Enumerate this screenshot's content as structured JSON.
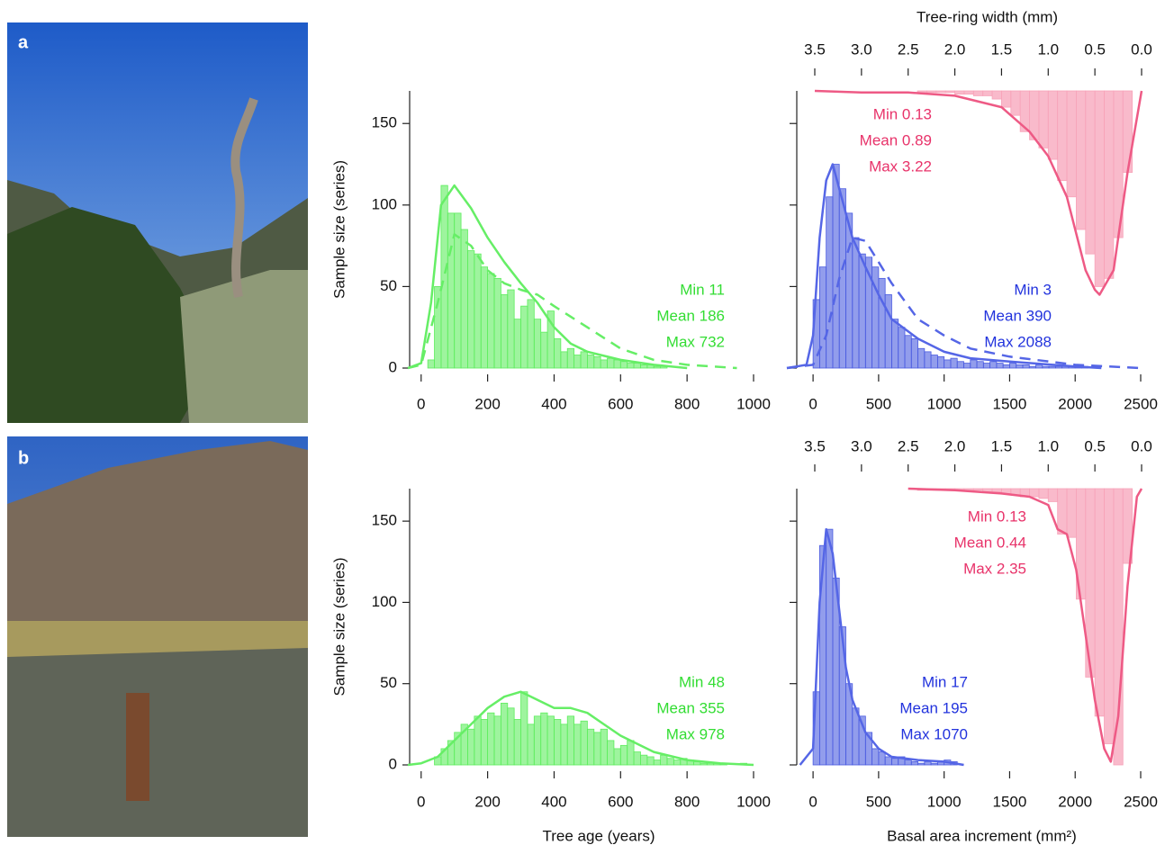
{
  "panels": [
    {
      "label": "a"
    },
    {
      "label": "b"
    }
  ],
  "chart_data": [
    {
      "type": "histogram",
      "y_label": "Sample size (series)",
      "xlim": [
        -40,
        1000
      ],
      "xticks": [
        0,
        200,
        400,
        600,
        800,
        1000
      ],
      "ylim": [
        0,
        170
      ],
      "yticks": [
        0,
        50,
        100,
        150
      ],
      "ytick_labels": true,
      "histograms": [
        {
          "color": "#5ded5d",
          "bins": [
            20,
            40,
            60,
            80,
            100,
            120,
            140,
            160,
            180,
            200,
            220,
            240,
            260,
            280,
            300,
            320,
            340,
            360,
            380,
            400,
            420,
            440,
            460,
            480,
            500,
            520,
            540,
            560,
            580,
            600,
            620,
            640,
            660,
            680,
            700,
            720,
            740
          ],
          "values": [
            5,
            50,
            112,
            95,
            95,
            85,
            72,
            70,
            62,
            58,
            55,
            45,
            48,
            30,
            38,
            42,
            30,
            22,
            35,
            18,
            10,
            12,
            8,
            10,
            8,
            7,
            5,
            6,
            5,
            4,
            3,
            3,
            2,
            2,
            1,
            1
          ]
        }
      ],
      "curves": [
        {
          "color": "#66ee66",
          "dash": false,
          "x": [
            -40,
            0,
            30,
            60,
            100,
            150,
            200,
            250,
            300,
            350,
            400,
            450,
            500,
            600,
            700,
            800
          ],
          "values": [
            0,
            3,
            40,
            100,
            112,
            98,
            80,
            65,
            52,
            40,
            25,
            15,
            10,
            5,
            2,
            0
          ]
        },
        {
          "color": "#66ee66",
          "dash": true,
          "x": [
            -40,
            0,
            50,
            100,
            150,
            200,
            250,
            300,
            350,
            400,
            500,
            600,
            700,
            800,
            950
          ],
          "values": [
            0,
            2,
            40,
            82,
            75,
            60,
            52,
            48,
            45,
            38,
            25,
            12,
            5,
            2,
            0
          ]
        }
      ],
      "annotations": [
        {
          "color": "#33dd33",
          "lines": [
            "Min 11",
            "Mean 186",
            "Max 732"
          ]
        }
      ]
    },
    {
      "type": "histogram",
      "x2_label": "Tree-ring width (mm)",
      "xlim": [
        -200,
        2500
      ],
      "xticks": [
        0,
        500,
        1000,
        1500,
        2000,
        2500
      ],
      "ylim": [
        0,
        170
      ],
      "yticks": [
        0,
        50,
        100,
        150
      ],
      "ytick_labels": false,
      "x2lim": [
        3.5,
        0
      ],
      "x2ticks": [
        3.5,
        {
          "value": 3,
          "label": "3.0"
        },
        2.5,
        {
          "value": 2,
          "label": "2.0"
        },
        1.5,
        {
          "value": 1,
          "label": "1.0"
        },
        0.5,
        {
          "value": 0,
          "label": "0.0"
        }
      ],
      "histograms": [
        {
          "color": "#4a5be0",
          "bins": [
            0,
            50,
            100,
            150,
            200,
            250,
            300,
            350,
            400,
            450,
            500,
            550,
            600,
            650,
            700,
            750,
            800,
            850,
            900,
            950,
            1000,
            1050,
            1100,
            1150,
            1200,
            1250,
            1300,
            1350,
            1400,
            1450,
            1500,
            1550,
            1600,
            1650,
            1700,
            1750,
            1800,
            1850,
            1900,
            1950,
            2000,
            2050,
            2100
          ],
          "values": [
            42,
            62,
            105,
            125,
            110,
            95,
            80,
            70,
            68,
            62,
            55,
            45,
            30,
            25,
            20,
            18,
            12,
            10,
            8,
            7,
            5,
            6,
            4,
            3,
            5,
            4,
            3,
            4,
            3,
            2,
            3,
            2,
            2,
            1,
            2,
            1,
            1,
            1,
            1,
            1,
            1,
            1
          ]
        },
        {
          "color": "#f7a3b9",
          "axis": "x2",
          "hang": true,
          "bins": [
            2.4,
            2.3,
            2.2,
            2.1,
            2.0,
            1.9,
            1.8,
            1.7,
            1.6,
            1.5,
            1.4,
            1.3,
            1.2,
            1.1,
            1.0,
            0.9,
            0.8,
            0.7,
            0.6,
            0.5,
            0.4,
            0.3,
            0.2,
            0.1
          ],
          "values": [
            1,
            1,
            1,
            1,
            2,
            2,
            3,
            3,
            5,
            10,
            15,
            25,
            30,
            35,
            42,
            55,
            65,
            85,
            100,
            120,
            115,
            90,
            50
          ]
        }
      ],
      "curves": [
        {
          "color": "#5566e6",
          "dash": false,
          "x": [
            -200,
            -50,
            0,
            50,
            100,
            150,
            200,
            300,
            400,
            500,
            600,
            800,
            1000,
            1200,
            1500,
            2000,
            2200
          ],
          "values": [
            0,
            2,
            20,
            80,
            115,
            125,
            110,
            80,
            62,
            45,
            30,
            18,
            10,
            6,
            4,
            1,
            0
          ]
        },
        {
          "color": "#5566e6",
          "dash": true,
          "x": [
            -200,
            0,
            100,
            200,
            300,
            400,
            500,
            600,
            800,
            1000,
            1200,
            1500,
            2000,
            2500
          ],
          "values": [
            0,
            2,
            20,
            55,
            80,
            78,
            65,
            52,
            30,
            20,
            12,
            7,
            2,
            0
          ]
        },
        {
          "color": "#ee5a85",
          "dash": false,
          "axis": "x2",
          "hang": true,
          "x": [
            3.5,
            3.0,
            2.5,
            2.0,
            1.5,
            1.2,
            1.0,
            0.8,
            0.6,
            0.5,
            0.45,
            0.3,
            0.15,
            0.0
          ],
          "values": [
            0,
            1,
            1,
            3,
            10,
            25,
            40,
            65,
            110,
            122,
            125,
            110,
            50,
            0
          ]
        }
      ],
      "annotations": [
        {
          "color": "#e8336a",
          "lines": [
            "Min 0.13",
            "Mean 0.89",
            "Max 3.22"
          ]
        },
        {
          "color": "#2233dd",
          "lines": [
            "Min 3",
            "Mean 390",
            "Max 2088"
          ]
        }
      ]
    },
    {
      "type": "histogram",
      "y_label": "Sample size (series)",
      "x_label": "Tree age (years)",
      "xlim": [
        -40,
        1000
      ],
      "xticks": [
        0,
        200,
        400,
        600,
        800,
        1000
      ],
      "ylim": [
        0,
        170
      ],
      "yticks": [
        0,
        50,
        100,
        150
      ],
      "ytick_labels": true,
      "histograms": [
        {
          "color": "#5ded5d",
          "bins": [
            40,
            60,
            80,
            100,
            120,
            140,
            160,
            180,
            200,
            220,
            240,
            260,
            280,
            300,
            320,
            340,
            360,
            380,
            400,
            420,
            440,
            460,
            480,
            500,
            520,
            540,
            560,
            580,
            600,
            620,
            640,
            660,
            680,
            700,
            720,
            740,
            760,
            780,
            800,
            820,
            840,
            860,
            880,
            900,
            920,
            940,
            960,
            980
          ],
          "values": [
            5,
            10,
            15,
            20,
            25,
            22,
            30,
            28,
            32,
            30,
            38,
            35,
            28,
            45,
            25,
            30,
            32,
            30,
            28,
            25,
            30,
            25,
            27,
            22,
            20,
            22,
            15,
            10,
            12,
            15,
            8,
            6,
            5,
            3,
            6,
            4,
            3,
            4,
            3,
            2,
            1,
            1,
            1,
            1,
            0,
            0,
            1
          ]
        }
      ],
      "curves": [
        {
          "color": "#66ee66",
          "dash": false,
          "x": [
            -40,
            0,
            50,
            100,
            150,
            200,
            250,
            300,
            350,
            400,
            450,
            500,
            550,
            600,
            700,
            800,
            900,
            1000
          ],
          "values": [
            0,
            1,
            5,
            15,
            25,
            35,
            42,
            45,
            40,
            35,
            35,
            32,
            25,
            18,
            8,
            3,
            1,
            0
          ]
        }
      ],
      "annotations": [
        {
          "color": "#33dd33",
          "lines": [
            "Min 48",
            "Mean 355",
            "Max 978"
          ]
        }
      ]
    },
    {
      "type": "histogram",
      "x_label": "Basal area increment (mm²)",
      "xlim": [
        -200,
        2500
      ],
      "xticks": [
        0,
        500,
        1000,
        1500,
        2000,
        2500
      ],
      "ylim": [
        0,
        170
      ],
      "yticks": [
        0,
        50,
        100,
        150
      ],
      "ytick_labels": false,
      "x2lim": [
        3.5,
        0
      ],
      "x2ticks": [
        3.5,
        {
          "value": 3,
          "label": "3.0"
        },
        2.5,
        {
          "value": 2,
          "label": "2.0"
        },
        1.5,
        {
          "value": 1,
          "label": "1.0"
        },
        0.5,
        {
          "value": 0,
          "label": "0.0"
        }
      ],
      "histograms": [
        {
          "color": "#4a5be0",
          "bins": [
            0,
            50,
            100,
            150,
            200,
            250,
            300,
            350,
            400,
            450,
            500,
            550,
            600,
            650,
            700,
            750,
            800,
            850,
            900,
            950,
            1000,
            1050,
            1100
          ],
          "values": [
            45,
            135,
            145,
            115,
            85,
            50,
            35,
            30,
            20,
            10,
            8,
            5,
            4,
            5,
            3,
            2,
            1,
            2,
            1,
            2,
            3,
            2
          ]
        },
        {
          "color": "#f7a3b9",
          "axis": "x2",
          "hang": true,
          "bins": [
            2.4,
            2.3,
            2.2,
            2.1,
            2.0,
            1.9,
            1.8,
            1.7,
            1.6,
            1.5,
            1.4,
            1.3,
            1.2,
            1.1,
            1.0,
            0.9,
            0.8,
            0.7,
            0.6,
            0.5,
            0.4,
            0.3,
            0.2,
            0.1
          ],
          "values": [
            1,
            1,
            1,
            1,
            1,
            1,
            1,
            2,
            2,
            3,
            4,
            5,
            5,
            6,
            8,
            28,
            30,
            68,
            116,
            140,
            157,
            170,
            46
          ]
        }
      ],
      "curves": [
        {
          "color": "#5566e6",
          "dash": false,
          "x": [
            -100,
            0,
            50,
            100,
            150,
            200,
            250,
            300,
            400,
            500,
            600,
            800,
            1000,
            1150
          ],
          "values": [
            0,
            10,
            100,
            145,
            130,
            95,
            60,
            40,
            20,
            10,
            5,
            3,
            2,
            0
          ]
        },
        {
          "color": "#ee5a85",
          "dash": false,
          "axis": "x2",
          "hang": true,
          "x": [
            2.5,
            2.0,
            1.5,
            1.2,
            1.0,
            0.9,
            0.8,
            0.7,
            0.6,
            0.5,
            0.4,
            0.33,
            0.25,
            0.15,
            0.05,
            0.0
          ],
          "values": [
            0,
            1,
            3,
            5,
            10,
            25,
            28,
            50,
            90,
            130,
            160,
            168,
            140,
            60,
            5,
            0
          ]
        }
      ],
      "annotations": [
        {
          "color": "#e8336a",
          "lines": [
            "Min 0.13",
            "Mean 0.44",
            "Max 2.35"
          ]
        },
        {
          "color": "#2233dd",
          "lines": [
            "Min 17",
            "Mean 195",
            "Max 1070"
          ]
        }
      ]
    }
  ]
}
